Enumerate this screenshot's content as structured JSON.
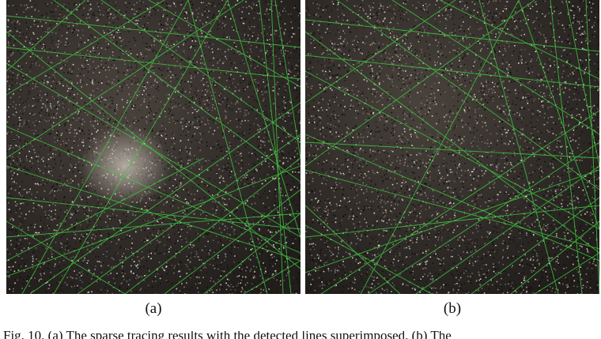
{
  "figure": {
    "panels": [
      {
        "id": "a",
        "label": "(a)"
      },
      {
        "id": "b",
        "label": "(b)"
      }
    ],
    "bottom_text": "Fig. 10.  (a) The sparse tracing results with the detected lines superimposed. (b) The"
  },
  "colors": {
    "background": "#2e2a27",
    "line": "#3fc83f",
    "speckle_light": "#e8e2d8",
    "speckle_dark": "#0e0c0b"
  }
}
